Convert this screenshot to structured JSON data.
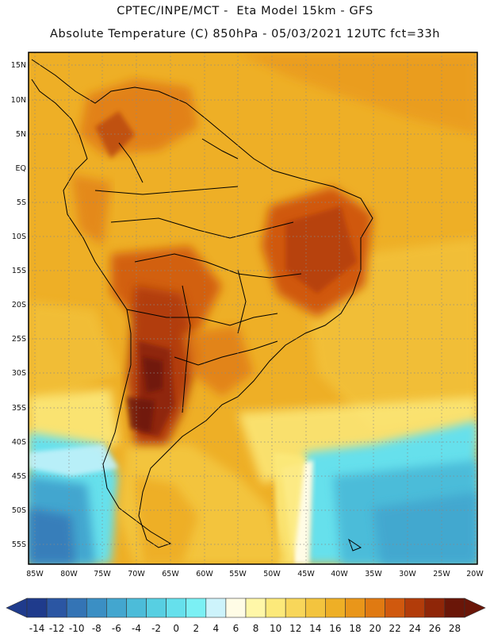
{
  "header": {
    "line1": "CPTEC/INPE/MCT -  Eta Model 15km - GFS",
    "line2": "Absolute Temperature (C) 850hPa - 05/03/2021 12UTC fct=33h"
  },
  "map": {
    "lat_labels": [
      "15N",
      "10N",
      "5N",
      "EQ",
      "5S",
      "10S",
      "15S",
      "20S",
      "25S",
      "30S",
      "35S",
      "40S",
      "45S",
      "50S",
      "55S"
    ],
    "lon_labels": [
      "85W",
      "80W",
      "75W",
      "70W",
      "65W",
      "60W",
      "55W",
      "50W",
      "45W",
      "40W",
      "35W",
      "30W",
      "25W",
      "20W"
    ],
    "lat_range": [
      -58,
      16.5
    ],
    "lon_range": [
      -86.5,
      -19.5
    ]
  },
  "colorbar": {
    "labels": [
      "-14",
      "-12",
      "-10",
      "-8",
      "-6",
      "-4",
      "-2",
      "0",
      "2",
      "4",
      "6",
      "8",
      "10",
      "12",
      "14",
      "16",
      "18",
      "20",
      "22",
      "24",
      "26",
      "28"
    ],
    "colors": [
      "#1f3b8c",
      "#2b56a3",
      "#3474b5",
      "#3b8fc4",
      "#43a6cf",
      "#4cbcd9",
      "#57cfe2",
      "#66e0ec",
      "#7bf0f4",
      "#cdf3fb",
      "#fffce6",
      "#fff7a8",
      "#fce97a",
      "#f8d65a",
      "#f3c43e",
      "#eeaf26",
      "#e9961a",
      "#e07a12",
      "#d0590e",
      "#b23c0a",
      "#8f2608",
      "#6a1608"
    ]
  }
}
